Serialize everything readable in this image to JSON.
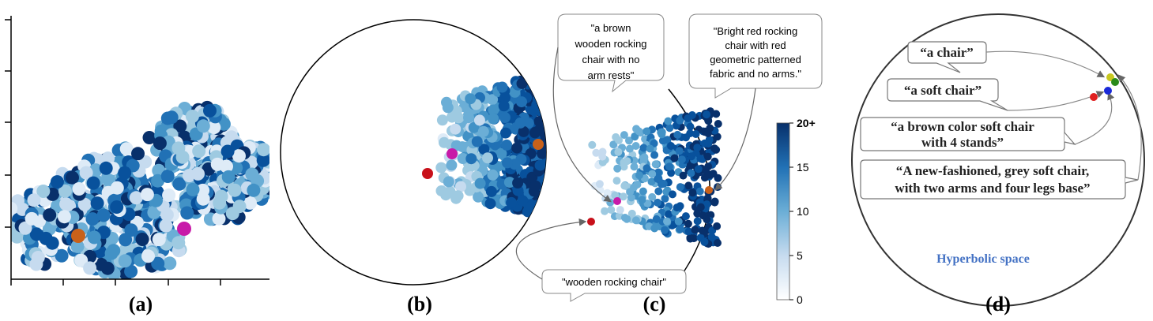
{
  "panels": {
    "a": {
      "label": "(a)"
    },
    "b": {
      "label": "(b)"
    },
    "c": {
      "label": "(c)"
    },
    "d": {
      "label": "(d)"
    }
  },
  "captions_c": [
    "\"a brown\nwooden rocking\nchair with no\narm rests\"",
    "\"Bright red rocking\nchair with red\ngeometric patterned\nfabric and no arms.\"",
    "\"wooden rocking chair\""
  ],
  "captions_d": [
    "“a chair”",
    "“a soft chair”",
    "“a brown color soft chair\nwith 4 stands”",
    "“A new-fashioned, grey soft chair,\nwith two arms and four legs base”"
  ],
  "hyperbolic_label": "Hyperbolic space",
  "colorbar": {
    "ticks": [
      "20+",
      "15",
      "10",
      "5",
      "0"
    ],
    "min": 0,
    "max": 20
  },
  "colors": {
    "orange": "#c8611a",
    "magenta": "#c81aa8",
    "red": "#c8101a",
    "d_red": "#e02020",
    "d_blue": "#1a2ad8",
    "d_yellow": "#c8c820",
    "d_green": "#2a8a1a"
  }
}
